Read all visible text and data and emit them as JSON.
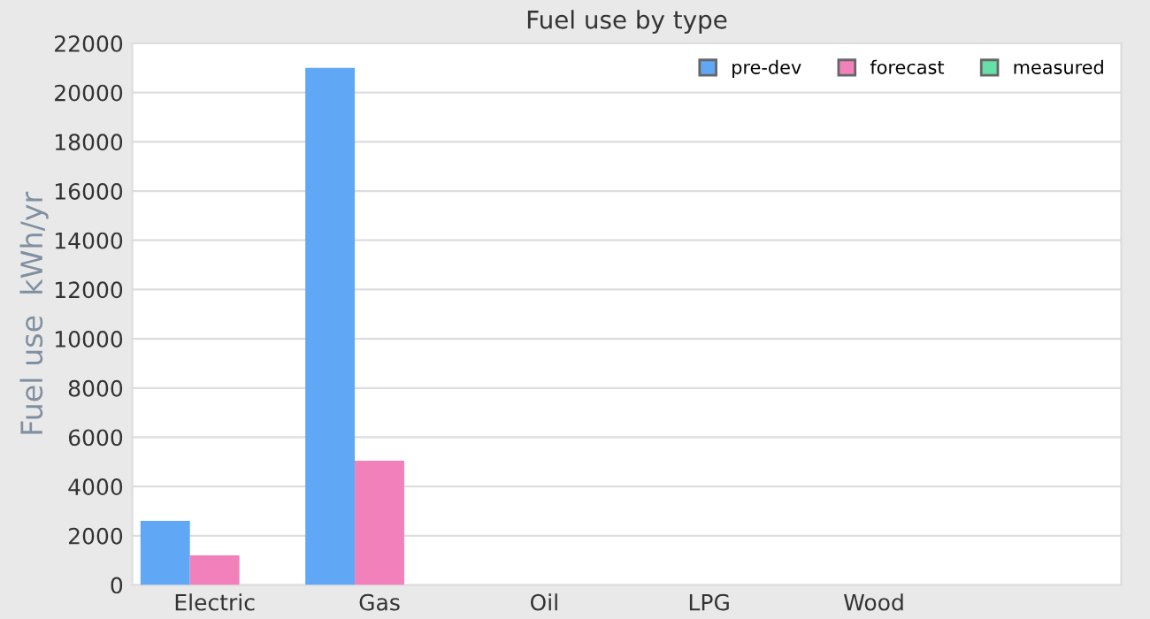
{
  "chart_data": {
    "type": "bar",
    "title": "Fuel use by type",
    "ylabel": "Fuel use  kWh/yr",
    "categories": [
      "Electric",
      "Gas",
      "Oil",
      "LPG",
      "Wood",
      null
    ],
    "series": [
      {
        "name": "pre-dev",
        "color": "#60a8f5",
        "values": [
          2600,
          21000,
          null,
          null,
          null,
          null
        ]
      },
      {
        "name": "forecast",
        "color": "#f281bb",
        "values": [
          1200,
          5050,
          null,
          null,
          null,
          null
        ]
      },
      {
        "name": "measured",
        "color": "#66e0a8",
        "values": [
          null,
          null,
          null,
          null,
          null,
          null
        ]
      }
    ],
    "ylim": [
      0,
      22000
    ],
    "yticks": [
      0,
      2000,
      4000,
      6000,
      8000,
      10000,
      12000,
      14000,
      16000,
      18000,
      20000,
      22000
    ],
    "grid": "y",
    "legend": "top right"
  }
}
